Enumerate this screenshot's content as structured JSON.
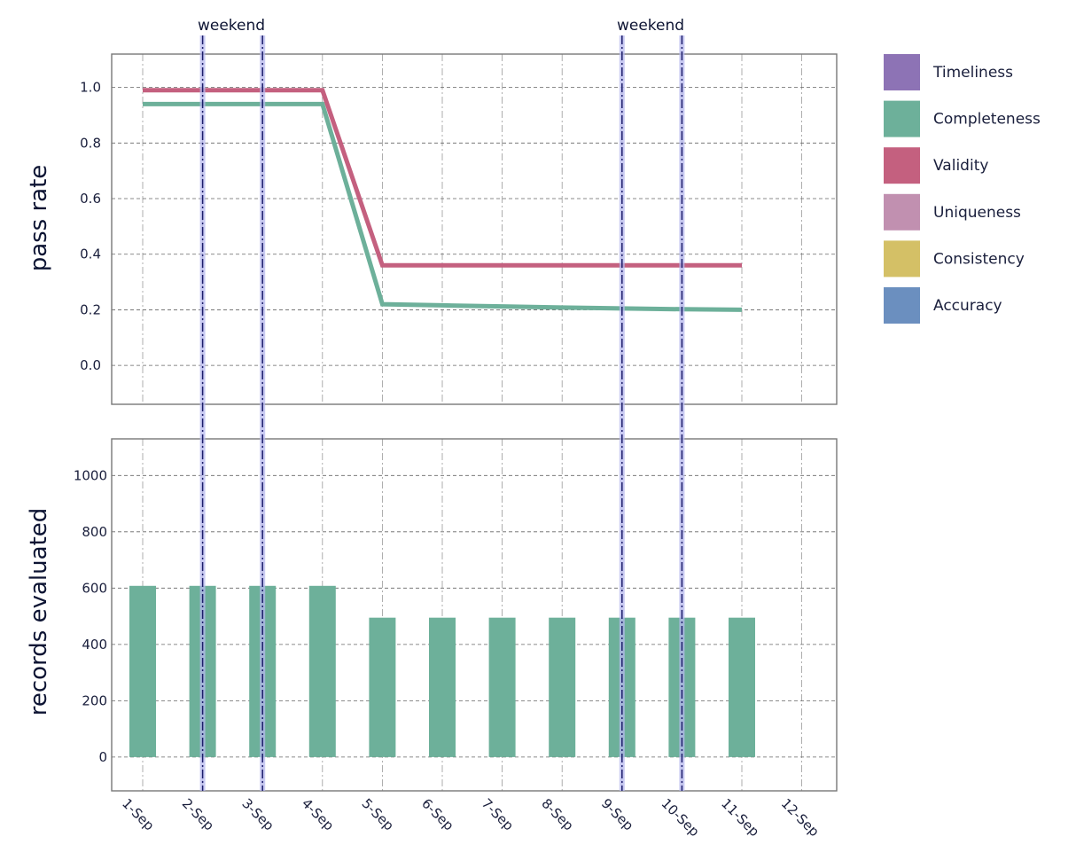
{
  "chart_data": [
    {
      "type": "line",
      "ylabel": "pass rate",
      "ylim": [
        -0.14,
        1.12
      ],
      "yticks": [
        "0.0",
        "0.2",
        "0.4",
        "0.6",
        "0.8",
        "1.0"
      ],
      "categories": [
        "1-Sep",
        "2-Sep",
        "3-Sep",
        "4-Sep",
        "5-Sep",
        "6-Sep",
        "7-Sep",
        "8-Sep",
        "9-Sep",
        "10-Sep",
        "11-Sep",
        "12-Sep"
      ],
      "series": [
        {
          "name": "Validity",
          "color": "#c4607f",
          "values": [
            0.99,
            0.99,
            0.99,
            0.99,
            0.36,
            0.36,
            0.36,
            0.36,
            0.36,
            0.36,
            0.36,
            null
          ]
        },
        {
          "name": "Completeness",
          "color": "#6db09a",
          "values": [
            0.94,
            0.94,
            0.94,
            0.94,
            0.22,
            0.216,
            0.212,
            0.208,
            0.205,
            0.202,
            0.2,
            null
          ]
        }
      ]
    },
    {
      "type": "bar",
      "ylabel": "records evaluated",
      "ylim": [
        -120,
        1130
      ],
      "yticks": [
        "0",
        "200",
        "400",
        "600",
        "800",
        "1000"
      ],
      "categories": [
        "1-Sep",
        "2-Sep",
        "3-Sep",
        "4-Sep",
        "5-Sep",
        "6-Sep",
        "7-Sep",
        "8-Sep",
        "9-Sep",
        "10-Sep",
        "11-Sep",
        "12-Sep"
      ],
      "values": [
        608,
        608,
        608,
        608,
        495,
        495,
        495,
        495,
        495,
        495,
        495,
        null
      ],
      "color": "#6db09a"
    }
  ],
  "weekend": {
    "label": "weekend",
    "groups": [
      {
        "label": "weekend",
        "days": [
          "2-Sep",
          "3-Sep"
        ]
      },
      {
        "label": "weekend",
        "days": [
          "9-Sep",
          "10-Sep"
        ]
      }
    ]
  },
  "legend": [
    {
      "label": "Timeliness",
      "color": "#8d73b5"
    },
    {
      "label": "Completeness",
      "color": "#6db09a"
    },
    {
      "label": "Validity",
      "color": "#c4607f"
    },
    {
      "label": "Uniqueness",
      "color": "#c190b0"
    },
    {
      "label": "Consistency",
      "color": "#d4c066"
    },
    {
      "label": "Accuracy",
      "color": "#6b8fbf"
    }
  ]
}
